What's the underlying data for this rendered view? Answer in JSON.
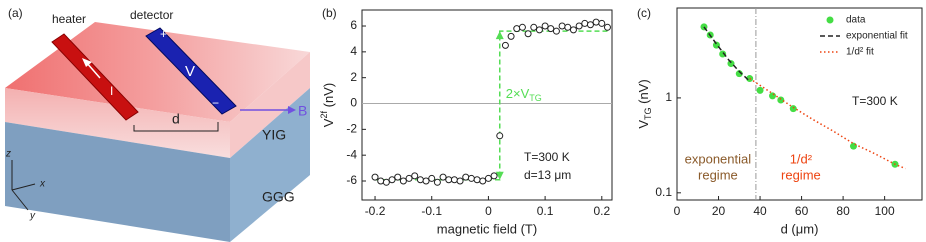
{
  "diagram": {
    "panel_label": "(a)",
    "heater": "heater",
    "detector": "detector",
    "plus": "+",
    "volt": "V",
    "minus": "−",
    "current": "I",
    "distance": "d",
    "field": "B",
    "yig": "YIG",
    "ggg": "GGG",
    "axis_z": "z",
    "axis_x": "x",
    "axis_y": "y"
  },
  "chart_data": [
    {
      "type": "scatter",
      "panel_label": "(b)",
      "xlabel": "magnetic field (T)",
      "ylabel": {
        "main": "V",
        "sup": "2f",
        "unit": "(nV)"
      },
      "x": [
        -0.2,
        -0.19,
        -0.18,
        -0.17,
        -0.16,
        -0.15,
        -0.14,
        -0.13,
        -0.12,
        -0.11,
        -0.1,
        -0.09,
        -0.08,
        -0.07,
        -0.06,
        -0.05,
        -0.04,
        -0.03,
        -0.02,
        -0.01,
        0,
        0.01,
        0.02,
        0.03,
        0.04,
        0.05,
        0.06,
        0.07,
        0.08,
        0.09,
        0.1,
        0.11,
        0.12,
        0.13,
        0.14,
        0.15,
        0.16,
        0.17,
        0.18,
        0.19,
        0.2,
        0.21
      ],
      "values": [
        -5.7,
        -6.0,
        -6.1,
        -5.9,
        -5.7,
        -6.0,
        -5.8,
        -5.6,
        -5.9,
        -6.0,
        -5.8,
        -6.1,
        -5.7,
        -5.9,
        -5.9,
        -6.0,
        -5.7,
        -5.8,
        -5.9,
        -6.0,
        -5.8,
        -5.6,
        -2.5,
        4.5,
        5.2,
        5.8,
        5.9,
        5.4,
        5.9,
        5.7,
        6.0,
        5.8,
        5.6,
        6.0,
        5.9,
        5.7,
        6.0,
        6.2,
        6.1,
        6.3,
        6.2,
        5.9
      ],
      "fit": {
        "color": "#55dd55",
        "x": [
          -0.2,
          0.02,
          0.02,
          0.21
        ],
        "values": [
          -5.9,
          -5.9,
          5.6,
          5.6
        ]
      },
      "arrow_label": {
        "main": "2×V",
        "sub": "TG"
      },
      "annotations": [
        "T=300 K",
        "d=13 μm"
      ],
      "xlim": [
        -0.223,
        0.218
      ],
      "ylim": [
        -7.47,
        7.24
      ],
      "xticks": [
        -0.2,
        -0.1,
        0,
        0.1,
        0.2
      ],
      "yticks": [
        -6,
        -4,
        -2,
        0,
        2,
        4,
        6
      ]
    },
    {
      "type": "scatter",
      "panel_label": "(c)",
      "xlabel": "d (μm)",
      "ylabel": {
        "main": "V",
        "sub": "TG",
        "unit": "(nV)"
      },
      "yscale": "log",
      "series": [
        {
          "name": "data",
          "color": "#44dd44",
          "style": "marker",
          "x": [
            13,
            16,
            19,
            22,
            26,
            30,
            35,
            40,
            46,
            50,
            56,
            85,
            105
          ],
          "values": [
            5.6,
            4.6,
            3.6,
            2.9,
            2.3,
            1.8,
            1.6,
            1.2,
            1.05,
            0.95,
            0.77,
            0.31,
            0.2
          ]
        },
        {
          "name": "exponential fit",
          "color": "#222222",
          "style": "dashed",
          "x": [
            13,
            19,
            25,
            30,
            35
          ],
          "values": [
            5.6,
            3.7,
            2.5,
            1.9,
            1.5
          ]
        },
        {
          "name": "1/d² fit",
          "color": "#ee4411",
          "style": "dotted",
          "x": [
            35,
            45,
            55,
            65,
            75,
            85,
            95,
            105,
            110
          ],
          "values": [
            1.6,
            1.15,
            0.82,
            0.6,
            0.45,
            0.33,
            0.26,
            0.2,
            0.18
          ]
        }
      ],
      "vline": 38,
      "annotations": [
        "T=300 K"
      ],
      "regimes": [
        {
          "lines": [
            "exponential",
            "regime"
          ],
          "color": "#8a5a2a"
        },
        {
          "lines": [
            "1/d²",
            "regime"
          ],
          "color": "#ee4411"
        }
      ],
      "xlim": [
        0,
        118
      ],
      "ylim": [
        0.084,
        8.86
      ],
      "xticks": [
        0,
        20,
        40,
        60,
        80,
        100
      ],
      "yticks": [
        0.1,
        1
      ]
    }
  ]
}
